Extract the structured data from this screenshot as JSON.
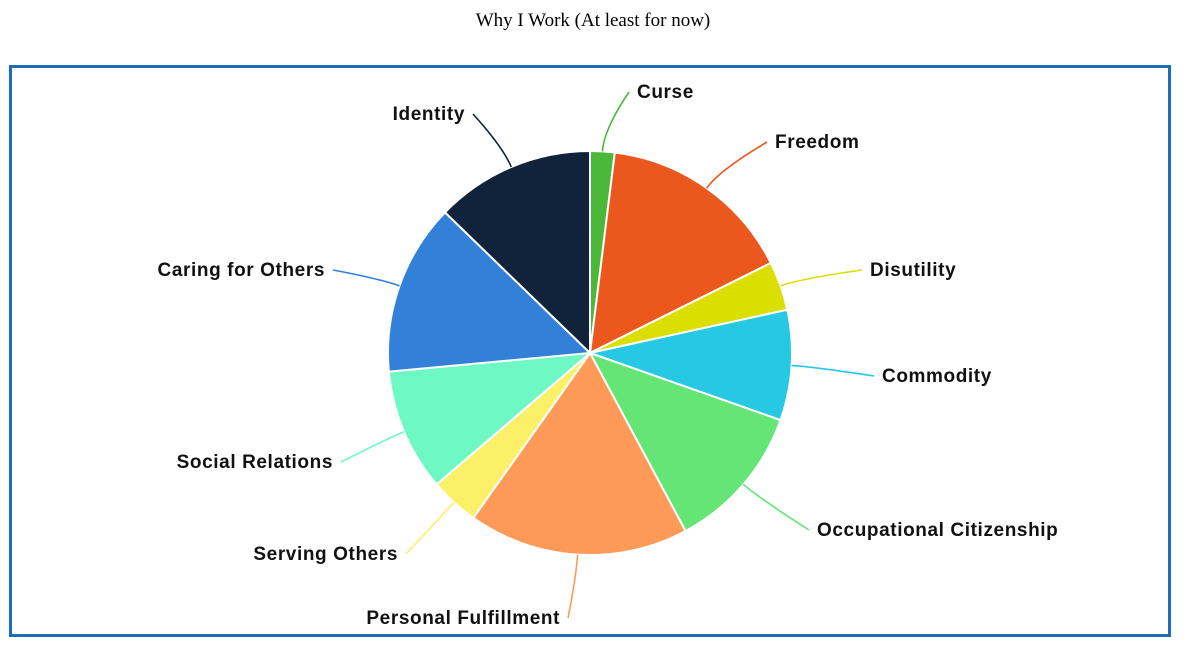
{
  "title": "Why I Work (At least for now)",
  "chart_data": {
    "type": "pie",
    "title": "Why I Work (At least for now)",
    "slices": [
      {
        "label": "Curse",
        "value": 2,
        "color": "#4cb83a"
      },
      {
        "label": "Freedom",
        "value": 16,
        "color": "#ea581d"
      },
      {
        "label": "Disutility",
        "value": 4,
        "color": "#dadf00"
      },
      {
        "label": "Commodity",
        "value": 9,
        "color": "#26c8e4"
      },
      {
        "label": "Occupational Citizenship",
        "value": 12,
        "color": "#64e575"
      },
      {
        "label": "Personal Fulfillment",
        "value": 18,
        "color": "#fe9a58"
      },
      {
        "label": "Serving Others",
        "value": 4,
        "color": "#fcf068"
      },
      {
        "label": "Social Relations",
        "value": 10,
        "color": "#6ef8c4"
      },
      {
        "label": "Caring for Others",
        "value": 14,
        "color": "#3380d8"
      },
      {
        "label": "Identity",
        "value": 13,
        "color": "#11233b"
      }
    ]
  }
}
